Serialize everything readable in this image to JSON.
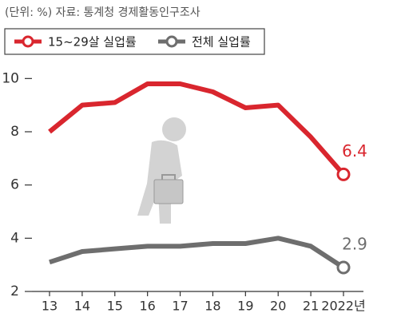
{
  "chart_data": {
    "type": "line",
    "source": "(단위: %)  자료: 통계청 경제활동인구조사",
    "categories": [
      "13",
      "14",
      "15",
      "16",
      "17",
      "18",
      "19",
      "20",
      "21",
      "2022년"
    ],
    "series": [
      {
        "name": "15~29살 실업률",
        "color": "#d9262e",
        "values": [
          8.0,
          9.0,
          9.1,
          9.8,
          9.8,
          9.5,
          8.9,
          9.0,
          7.8,
          6.4
        ]
      },
      {
        "name": "전체 실업률",
        "color": "#6e6e6e",
        "values": [
          3.1,
          3.5,
          3.6,
          3.7,
          3.7,
          3.8,
          3.8,
          4.0,
          3.7,
          2.9
        ]
      }
    ],
    "ylim": [
      2,
      10.4
    ],
    "yticks": [
      2,
      4,
      6,
      8,
      10
    ]
  }
}
